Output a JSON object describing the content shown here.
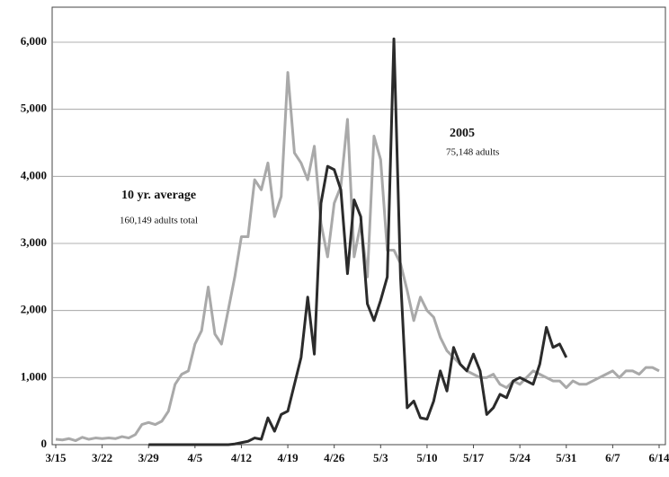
{
  "chart_data": {
    "type": "line",
    "categories": [
      "3/15",
      null,
      null,
      null,
      null,
      null,
      null,
      "3/22",
      null,
      null,
      null,
      null,
      null,
      null,
      "3/29",
      null,
      null,
      null,
      null,
      null,
      null,
      "4/5",
      null,
      null,
      null,
      null,
      null,
      null,
      "4/12",
      null,
      null,
      null,
      null,
      null,
      null,
      "4/19",
      null,
      null,
      null,
      null,
      null,
      null,
      "4/26",
      null,
      null,
      null,
      null,
      null,
      null,
      "5/3",
      null,
      null,
      null,
      null,
      null,
      null,
      "5/10",
      null,
      null,
      null,
      null,
      null,
      null,
      "5/17",
      null,
      null,
      null,
      null,
      null,
      null,
      "5/24",
      null,
      null,
      null,
      null,
      null,
      null,
      "5/31",
      null,
      null,
      null,
      null,
      null,
      null,
      "6/7",
      null,
      null,
      null,
      null,
      null,
      null,
      "6/14"
    ],
    "series": [
      {
        "name": "10 yr. average",
        "color": "#a9a9a9",
        "values": [
          80,
          70,
          90,
          60,
          110,
          80,
          100,
          90,
          100,
          90,
          120,
          100,
          150,
          300,
          330,
          300,
          350,
          500,
          900,
          1050,
          1100,
          1500,
          1700,
          2350,
          1650,
          1500,
          2000,
          2500,
          3100,
          3100,
          3950,
          3800,
          4200,
          3400,
          3700,
          5550,
          4350,
          4200,
          3950,
          4450,
          3300,
          2800,
          3600,
          3850,
          4850,
          2800,
          3300,
          2500,
          4600,
          4250,
          2900,
          2900,
          2700,
          2300,
          1850,
          2200,
          2000,
          1900,
          1600,
          1400,
          1300,
          1200,
          1100,
          1050,
          1000,
          1000,
          1050,
          900,
          850,
          950,
          900,
          1000,
          1100,
          1050,
          1000,
          950,
          950,
          850,
          950,
          900,
          900,
          950,
          1000,
          1050,
          1100,
          1000,
          1100,
          1100,
          1050,
          1150,
          1150,
          1100
        ]
      },
      {
        "name": "2005",
        "color": "#2b2b2b",
        "values": [
          null,
          null,
          null,
          null,
          null,
          null,
          null,
          null,
          null,
          null,
          null,
          null,
          null,
          null,
          0,
          0,
          0,
          0,
          0,
          0,
          0,
          0,
          0,
          0,
          0,
          0,
          0,
          10,
          30,
          50,
          100,
          80,
          400,
          200,
          450,
          500,
          900,
          1300,
          2200,
          1350,
          3600,
          4150,
          4100,
          3800,
          2550,
          3650,
          3400,
          2100,
          1850,
          2150,
          2500,
          6050,
          2500,
          550,
          650,
          400,
          380,
          650,
          1100,
          800,
          1450,
          1200,
          1100,
          1350,
          1100,
          450,
          550,
          750,
          700,
          950,
          1000,
          950,
          900,
          1200,
          1750,
          1450,
          1500,
          1300,
          null,
          null,
          null,
          null,
          null,
          null,
          null,
          null,
          null,
          null,
          null,
          null,
          null,
          null
        ]
      }
    ],
    "annotations": [
      "160,149 adults total",
      "75,148 adults"
    ],
    "ylim": [
      0,
      6000
    ],
    "yticks": [
      0,
      {
        "value": 1000,
        "label": "1,000"
      },
      {
        "value": 2000,
        "label": "2,000"
      },
      {
        "value": 3000,
        "label": "3,000"
      },
      {
        "value": 4000,
        "label": "4,000"
      },
      {
        "value": 5000,
        "label": "5,000"
      },
      {
        "value": 6000,
        "label": "6,000"
      }
    ],
    "grid": true
  }
}
